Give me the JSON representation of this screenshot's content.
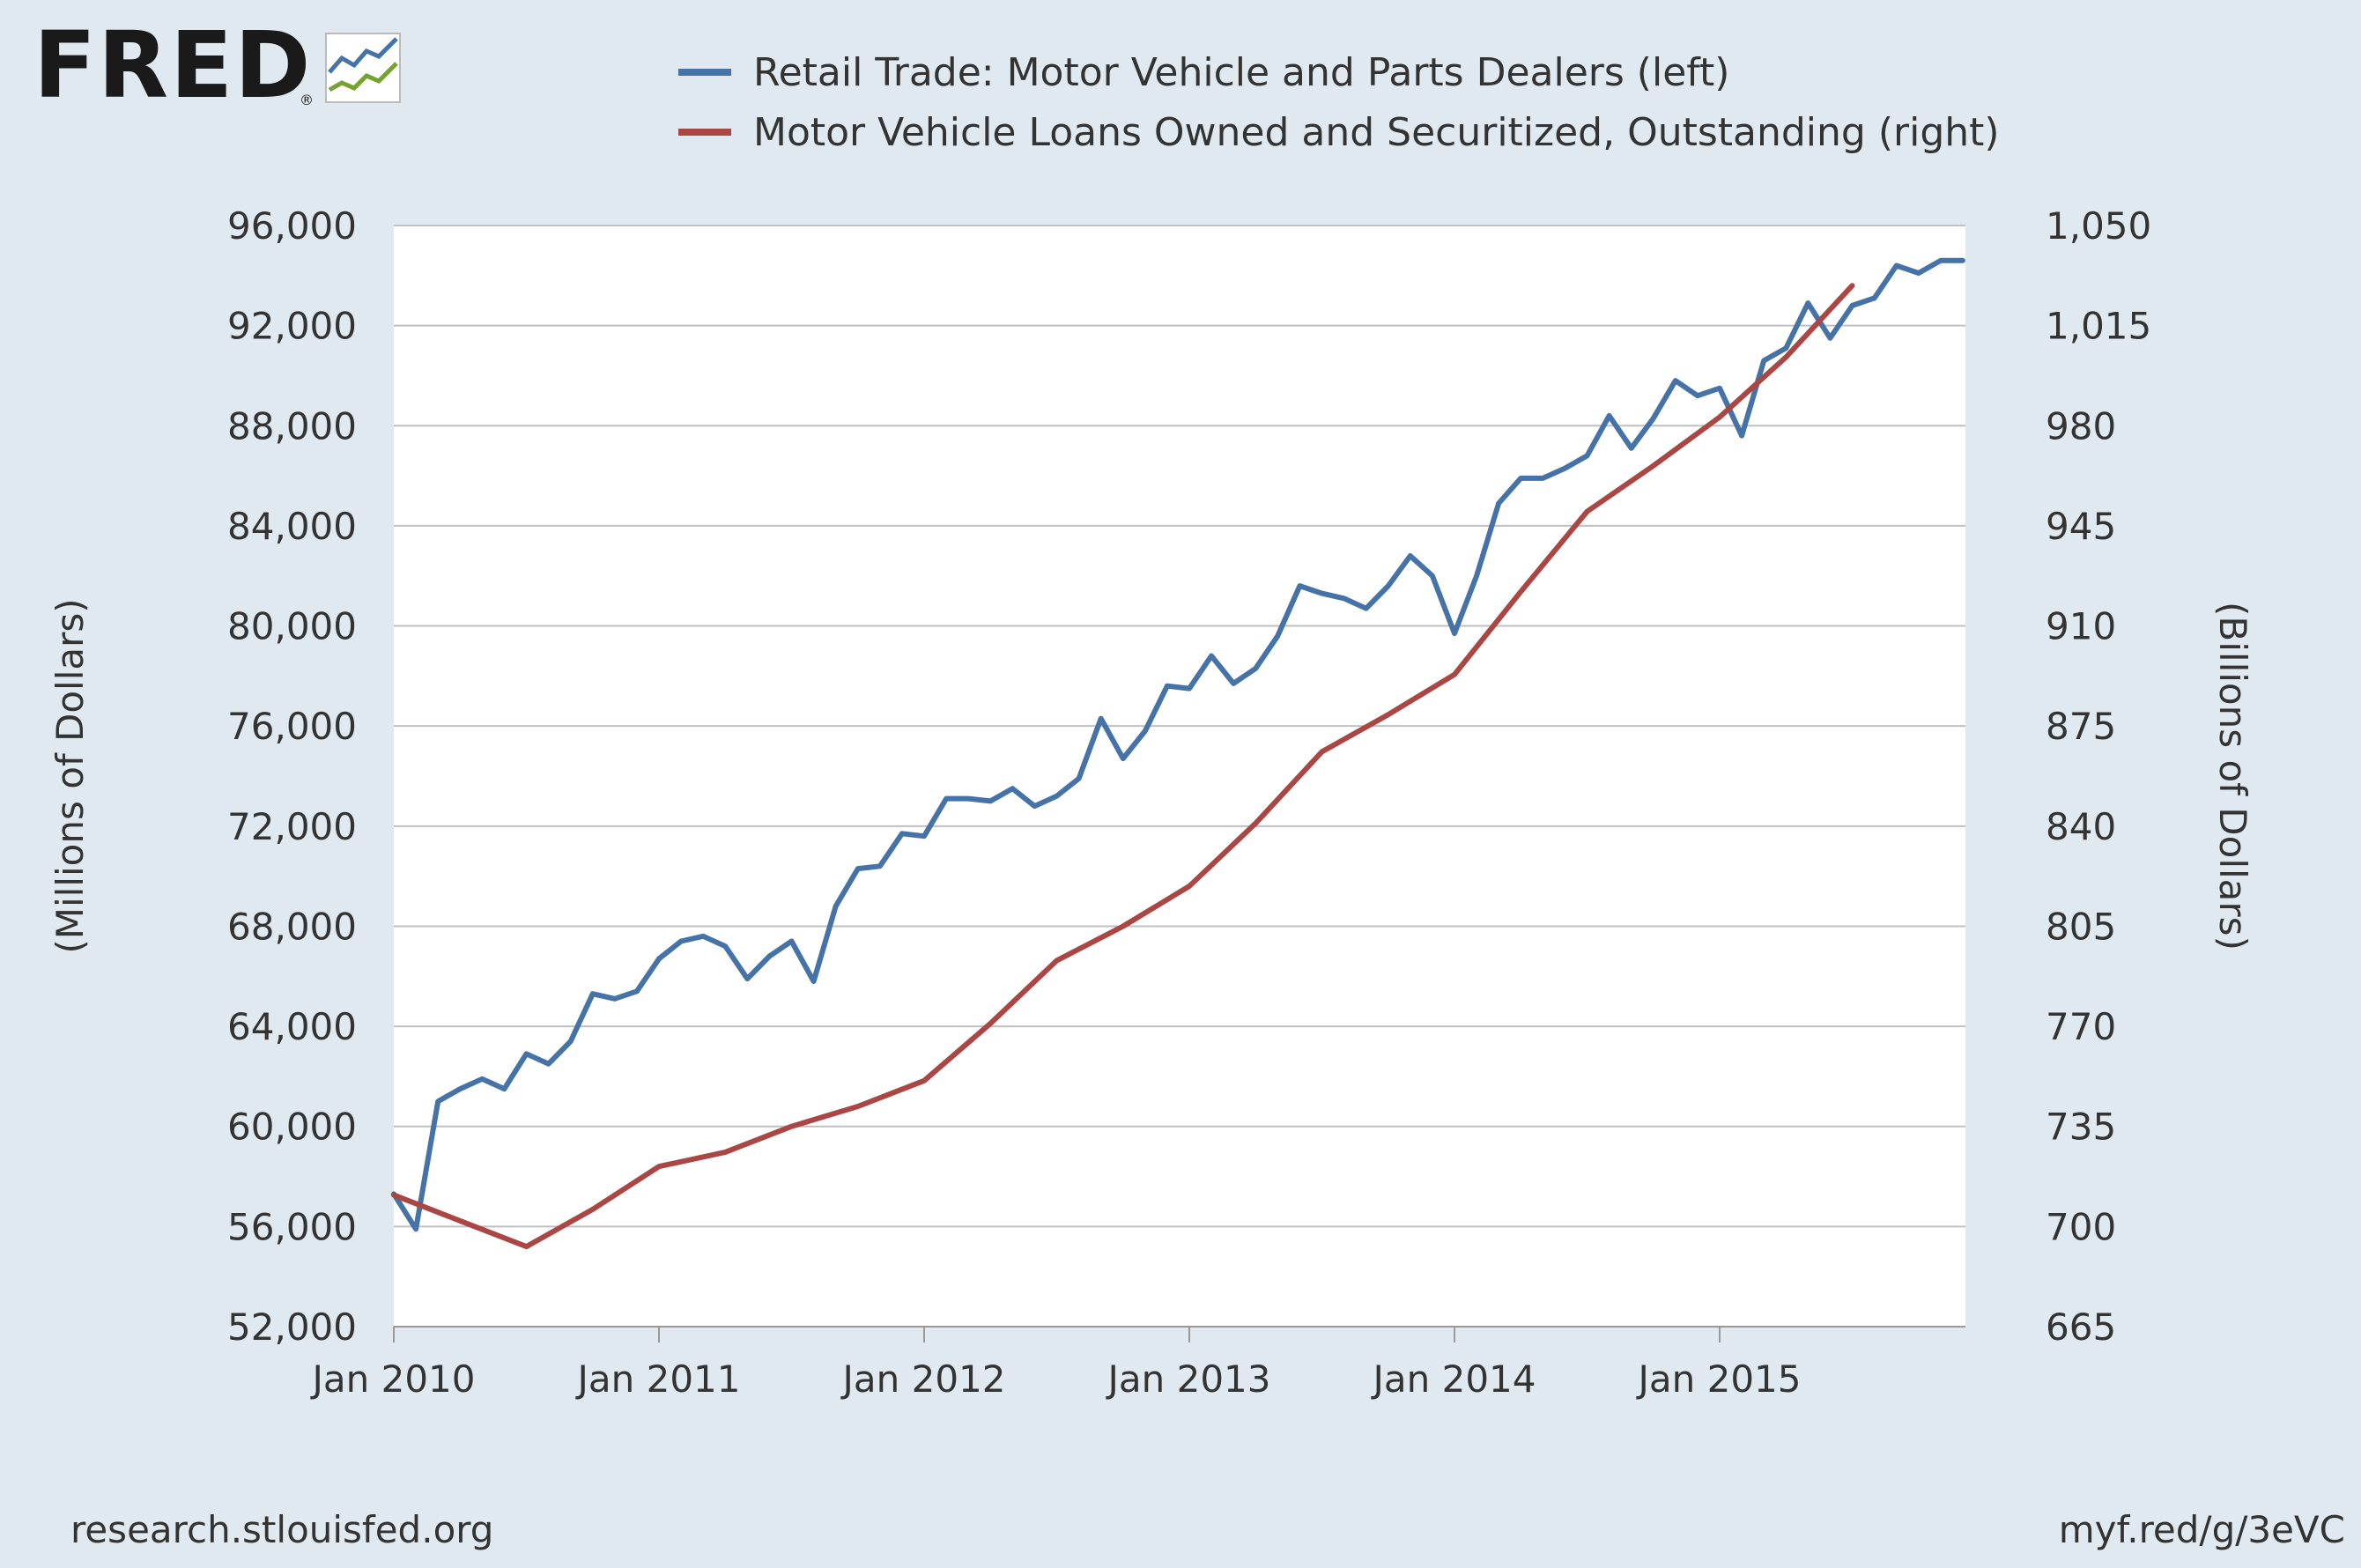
{
  "logo": {
    "text": "FRED",
    "registered": "®",
    "icon": "fred-graph-icon"
  },
  "footer": {
    "left": "research.stlouisfed.org",
    "right": "myf.red/g/3eVC"
  },
  "colors": {
    "background": "#e1e9f0",
    "plot_bg": "#ffffff",
    "grid": "#c0c0c0",
    "blue": "#4572a7",
    "red": "#aa4643",
    "text": "#333333"
  },
  "chart_data": {
    "type": "line",
    "title": "",
    "legend": [
      {
        "name": "Retail Trade: Motor Vehicle and Parts Dealers (left)",
        "color": "#4572a7"
      },
      {
        "name": "Motor Vehicle Loans Owned and Securitized, Outstanding (right)",
        "color": "#aa4643"
      }
    ],
    "xlabel": "",
    "x_ticks": [
      "Jan 2010",
      "Jan 2011",
      "Jan 2012",
      "Jan 2013",
      "Jan 2014",
      "Jan 2015"
    ],
    "x_range": [
      "2010-01",
      "2015-12"
    ],
    "y_left": {
      "label": "(Millions of Dollars)",
      "range": [
        52000,
        96000
      ],
      "ticks": [
        52000,
        56000,
        60000,
        64000,
        68000,
        72000,
        76000,
        80000,
        84000,
        88000,
        92000,
        96000
      ],
      "tick_labels": [
        "52,000",
        "56,000",
        "60,000",
        "64,000",
        "68,000",
        "72,000",
        "76,000",
        "80,000",
        "84,000",
        "88,000",
        "92,000",
        "96,000"
      ]
    },
    "y_right": {
      "label": "(Billions of Dollars)",
      "range": [
        665,
        1050
      ],
      "ticks": [
        665,
        700,
        735,
        770,
        805,
        840,
        875,
        910,
        945,
        980,
        1015,
        1050
      ],
      "tick_labels": [
        "665",
        "700",
        "735",
        "770",
        "805",
        "840",
        "875",
        "910",
        "945",
        "980",
        "1,015",
        "1,050"
      ]
    },
    "grid": true,
    "series": [
      {
        "name": "Retail Trade: Motor Vehicle and Parts Dealers",
        "axis": "left",
        "frequency": "monthly",
        "start": "2010-01",
        "values": [
          57300,
          55900,
          61000,
          61500,
          61900,
          61500,
          62900,
          62500,
          63400,
          65300,
          65100,
          65400,
          66700,
          67400,
          67600,
          67200,
          65900,
          66800,
          67400,
          65800,
          68800,
          70300,
          70400,
          71700,
          71600,
          73100,
          73100,
          73000,
          73500,
          72800,
          73200,
          73900,
          76300,
          74700,
          75800,
          77600,
          77500,
          78800,
          77700,
          78300,
          79600,
          81600,
          81300,
          81100,
          80700,
          81600,
          82800,
          82000,
          79700,
          82000,
          84900,
          85900,
          85900,
          86300,
          86800,
          88400,
          87100,
          88300,
          89800,
          89200,
          89500,
          87600,
          90600,
          91100,
          92900,
          91500,
          92800,
          93100,
          94400,
          94100,
          94600,
          94600
        ]
      },
      {
        "name": "Motor Vehicle Loans Owned and Securitized, Outstanding",
        "axis": "right",
        "frequency": "quarterly",
        "start": "2010-01",
        "values": [
          711,
          702,
          693,
          706,
          721,
          726,
          735,
          742,
          751,
          771,
          793,
          805,
          819,
          841,
          866,
          879,
          893,
          922,
          950,
          966,
          983,
          1004,
          1029
        ]
      }
    ]
  }
}
